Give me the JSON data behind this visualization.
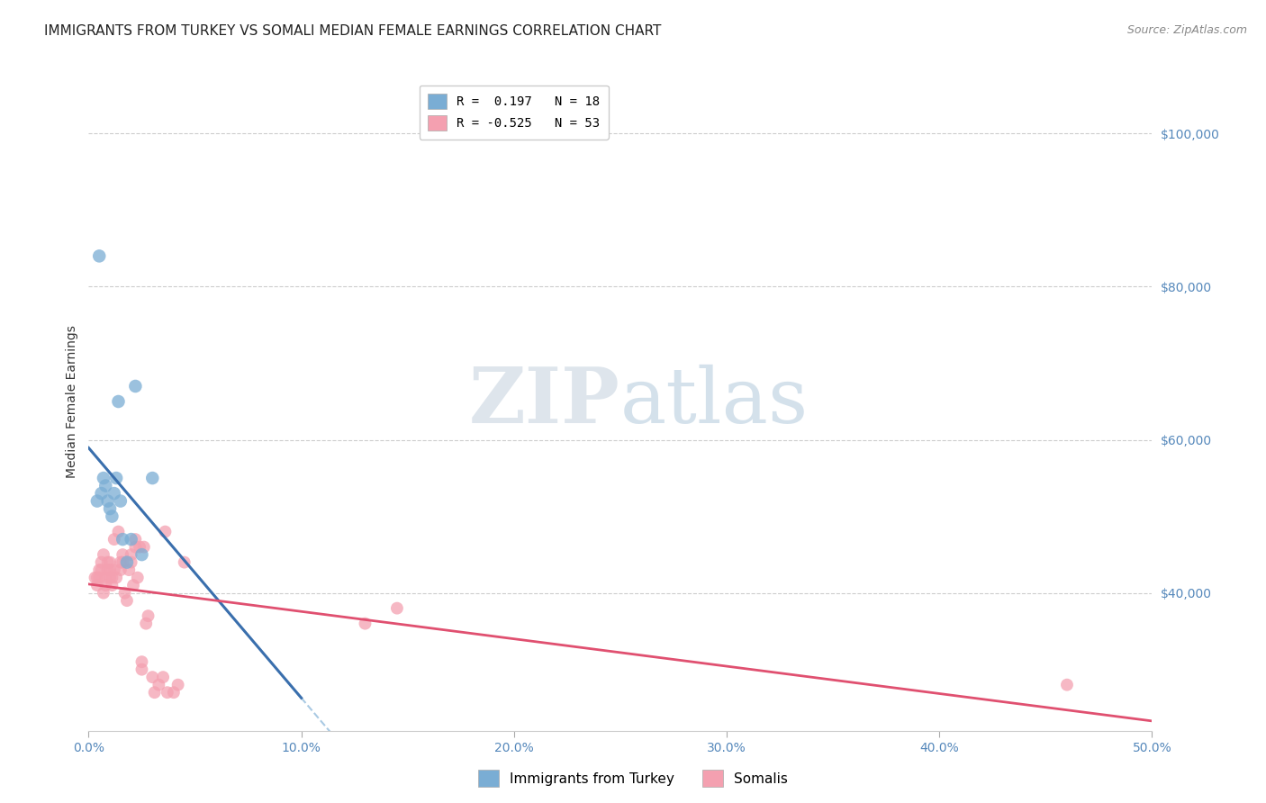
{
  "title": "IMMIGRANTS FROM TURKEY VS SOMALI MEDIAN FEMALE EARNINGS CORRELATION CHART",
  "source": "Source: ZipAtlas.com",
  "ylabel": "Median Female Earnings",
  "xlim": [
    0.0,
    0.5
  ],
  "ylim": [
    22000,
    108000
  ],
  "xticks": [
    0.0,
    0.1,
    0.2,
    0.3,
    0.4,
    0.5
  ],
  "xticklabels": [
    "0.0%",
    "10.0%",
    "20.0%",
    "30.0%",
    "40.0%",
    "50.0%"
  ],
  "yticks_right": [
    40000,
    60000,
    80000,
    100000
  ],
  "ytick_labels_right": [
    "$40,000",
    "$60,000",
    "$80,000",
    "$100,000"
  ],
  "grid_color": "#cccccc",
  "background_color": "#ffffff",
  "turkey_color": "#7aadd4",
  "somali_color": "#f4a0b0",
  "turkey_line_color": "#3a6fad",
  "somali_line_color": "#e05070",
  "turkey_dash_color": "#a0c4e0",
  "turkey_R": 0.197,
  "turkey_N": 18,
  "somali_R": -0.525,
  "somali_N": 53,
  "turkey_x": [
    0.004,
    0.005,
    0.006,
    0.007,
    0.008,
    0.009,
    0.01,
    0.011,
    0.012,
    0.013,
    0.014,
    0.015,
    0.016,
    0.018,
    0.02,
    0.022,
    0.025,
    0.03
  ],
  "turkey_y": [
    52000,
    84000,
    53000,
    55000,
    54000,
    52000,
    51000,
    50000,
    53000,
    55000,
    65000,
    52000,
    47000,
    44000,
    47000,
    67000,
    45000,
    55000
  ],
  "somali_x": [
    0.003,
    0.004,
    0.004,
    0.005,
    0.005,
    0.006,
    0.006,
    0.007,
    0.007,
    0.008,
    0.008,
    0.009,
    0.009,
    0.01,
    0.01,
    0.01,
    0.011,
    0.011,
    0.012,
    0.012,
    0.013,
    0.014,
    0.015,
    0.015,
    0.016,
    0.016,
    0.017,
    0.018,
    0.019,
    0.02,
    0.02,
    0.021,
    0.022,
    0.022,
    0.023,
    0.024,
    0.025,
    0.025,
    0.026,
    0.027,
    0.028,
    0.03,
    0.031,
    0.033,
    0.035,
    0.036,
    0.037,
    0.04,
    0.042,
    0.045,
    0.13,
    0.145,
    0.46
  ],
  "somali_y": [
    42000,
    41000,
    42000,
    43000,
    42000,
    44000,
    43000,
    45000,
    40000,
    41000,
    42000,
    43000,
    44000,
    42000,
    43000,
    44000,
    41000,
    42000,
    47000,
    43000,
    42000,
    48000,
    43000,
    44000,
    44000,
    45000,
    40000,
    39000,
    43000,
    44000,
    45000,
    41000,
    46000,
    47000,
    42000,
    46000,
    30000,
    31000,
    46000,
    36000,
    37000,
    29000,
    27000,
    28000,
    29000,
    48000,
    27000,
    27000,
    28000,
    44000,
    36000,
    38000,
    28000
  ],
  "title_fontsize": 11,
  "axis_label_fontsize": 10,
  "tick_fontsize": 10,
  "legend_fontsize": 10,
  "source_fontsize": 9
}
